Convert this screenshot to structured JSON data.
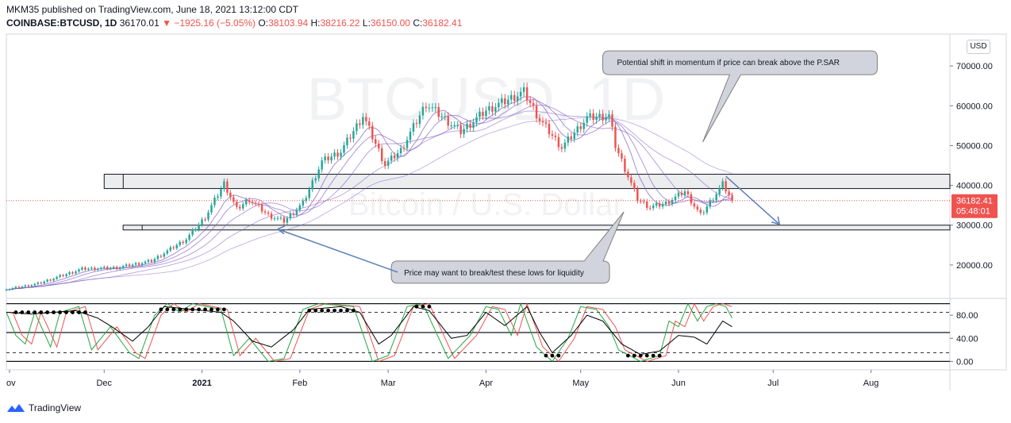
{
  "header": {
    "line1": "MKM35 published on TradingView.com, June 18, 2021 13:12:00 CDT",
    "symbol": "COINBASE:BTCUSD, 1D",
    "last": "36170.01",
    "change": "−1925.16 (−5.05%)",
    "o_label": "O:",
    "o_value": "38103.94",
    "h_label": "H:",
    "h_value": "38216.22",
    "l_label": "L:",
    "l_value": "36150.00",
    "c_label": "C:",
    "c_value": "36182.41"
  },
  "currency_label": "USD",
  "footer": {
    "brand": "TradingView"
  },
  "chart_data": [
    {
      "type": "candlestick",
      "series_name": "COINBASE:BTCUSD",
      "watermark_title": "BTCUSD, 1D",
      "watermark_subtitle": "Bitcoin / U.S. Dollar",
      "y_ticks": [
        "70000.00",
        "60000.00",
        "50000.00",
        "40000.00",
        "30000.00",
        "20000.00"
      ],
      "y_tick_values": [
        70000,
        60000,
        50000,
        40000,
        30000,
        20000
      ],
      "ylim": [
        12000,
        77000
      ],
      "x_tick_labels": [
        "ov",
        "Dec",
        "2021",
        "Feb",
        "Mar",
        "Apr",
        "May",
        "Jun",
        "Jul",
        "Aug"
      ],
      "x_tick_dates": [
        "2020-11-01",
        "2020-12-01",
        "2021-01-01",
        "2021-02-01",
        "2021-03-01",
        "2021-04-01",
        "2021-05-01",
        "2021-06-01",
        "2021-07-01",
        "2021-08-01"
      ],
      "xlim": [
        "2020-10-31",
        "2021-08-26"
      ],
      "price_anchor_points": [
        {
          "date": "2020-10-31",
          "close": 13800
        },
        {
          "date": "2020-11-10",
          "close": 15300
        },
        {
          "date": "2020-11-24",
          "close": 19000
        },
        {
          "date": "2020-12-05",
          "close": 19300
        },
        {
          "date": "2020-12-16",
          "close": 21000
        },
        {
          "date": "2020-12-27",
          "close": 26500
        },
        {
          "date": "2021-01-02",
          "close": 32000
        },
        {
          "date": "2021-01-08",
          "close": 40500
        },
        {
          "date": "2021-01-12",
          "close": 34000
        },
        {
          "date": "2021-01-16",
          "close": 36500
        },
        {
          "date": "2021-01-22",
          "close": 32500
        },
        {
          "date": "2021-01-27",
          "close": 31000
        },
        {
          "date": "2021-02-02",
          "close": 35500
        },
        {
          "date": "2021-02-08",
          "close": 46000
        },
        {
          "date": "2021-02-14",
          "close": 48500
        },
        {
          "date": "2021-02-21",
          "close": 57500
        },
        {
          "date": "2021-02-28",
          "close": 45200
        },
        {
          "date": "2021-03-05",
          "close": 48800
        },
        {
          "date": "2021-03-13",
          "close": 60500
        },
        {
          "date": "2021-03-24",
          "close": 53500
        },
        {
          "date": "2021-04-01",
          "close": 58800
        },
        {
          "date": "2021-04-13",
          "close": 63500
        },
        {
          "date": "2021-04-18",
          "close": 56500
        },
        {
          "date": "2021-04-25",
          "close": 49500
        },
        {
          "date": "2021-05-03",
          "close": 57000
        },
        {
          "date": "2021-05-10",
          "close": 57500
        },
        {
          "date": "2021-05-12",
          "close": 50000
        },
        {
          "date": "2021-05-19",
          "close": 36500
        },
        {
          "date": "2021-05-23",
          "close": 34500
        },
        {
          "date": "2021-05-28",
          "close": 35500
        },
        {
          "date": "2021-06-03",
          "close": 38500
        },
        {
          "date": "2021-06-08",
          "close": 32500
        },
        {
          "date": "2021-06-13",
          "close": 38000
        },
        {
          "date": "2021-06-15",
          "close": 40300
        },
        {
          "date": "2021-06-18",
          "close": 36182
        }
      ],
      "last_close_badge": "36182.41",
      "countdown_badge": "05:48:01",
      "zones": [
        {
          "name": "upper-zone",
          "from_date": "2020-12-01",
          "to_date": "2021-08-26",
          "y_low": 39200,
          "y_high": 42800
        },
        {
          "name": "lower-zone",
          "from_date": "2020-12-07",
          "to_date": "2021-08-26",
          "y_low": 28800,
          "y_high": 30000
        }
      ],
      "annotations": [
        {
          "text": "Potential shift in momentum if price can break above the P.SAR"
        },
        {
          "text": "Price may want to break/test these lows for liquidity"
        }
      ],
      "colors": {
        "up": "#26a69a",
        "down": "#ef5350",
        "ma": "#7e57c2",
        "arrow": "#5b7fb8",
        "callout_fill": "#d1d4dc",
        "callout_border": "#808080"
      }
    },
    {
      "type": "line",
      "series_name": "Stochastic RSI",
      "y_ticks": [
        "80.00",
        "40.00",
        "0.00"
      ],
      "y_tick_values": [
        80,
        40,
        0
      ],
      "ylim": [
        -5,
        105
      ],
      "levels": [
        100,
        85,
        50,
        15,
        0
      ],
      "k_anchor_points": [
        {
          "date": "2020-10-31",
          "k": 85
        },
        {
          "date": "2020-11-03",
          "k": 45
        },
        {
          "date": "2020-11-06",
          "k": 30
        },
        {
          "date": "2020-11-09",
          "k": 85
        },
        {
          "date": "2020-11-14",
          "k": 25
        },
        {
          "date": "2020-11-17",
          "k": 85
        },
        {
          "date": "2020-11-23",
          "k": 95
        },
        {
          "date": "2020-11-27",
          "k": 20
        },
        {
          "date": "2020-12-03",
          "k": 60
        },
        {
          "date": "2020-12-09",
          "k": 15
        },
        {
          "date": "2020-12-12",
          "k": 5
        },
        {
          "date": "2020-12-17",
          "k": 80
        },
        {
          "date": "2020-12-21",
          "k": 100
        },
        {
          "date": "2020-12-25",
          "k": 85
        },
        {
          "date": "2020-12-29",
          "k": 100
        },
        {
          "date": "2021-01-07",
          "k": 90
        },
        {
          "date": "2021-01-11",
          "k": 10
        },
        {
          "date": "2021-01-16",
          "k": 40
        },
        {
          "date": "2021-01-22",
          "k": 0
        },
        {
          "date": "2021-01-27",
          "k": 5
        },
        {
          "date": "2021-02-02",
          "k": 90
        },
        {
          "date": "2021-02-07",
          "k": 100
        },
        {
          "date": "2021-02-18",
          "k": 95
        },
        {
          "date": "2021-02-24",
          "k": 0
        },
        {
          "date": "2021-03-01",
          "k": 10
        },
        {
          "date": "2021-03-07",
          "k": 95
        },
        {
          "date": "2021-03-12",
          "k": 100
        },
        {
          "date": "2021-03-20",
          "k": 5
        },
        {
          "date": "2021-03-27",
          "k": 45
        },
        {
          "date": "2021-04-01",
          "k": 95
        },
        {
          "date": "2021-04-05",
          "k": 90
        },
        {
          "date": "2021-04-09",
          "k": 45
        },
        {
          "date": "2021-04-12",
          "k": 100
        },
        {
          "date": "2021-04-17",
          "k": 25
        },
        {
          "date": "2021-04-22",
          "k": 0
        },
        {
          "date": "2021-04-27",
          "k": 40
        },
        {
          "date": "2021-05-01",
          "k": 95
        },
        {
          "date": "2021-05-06",
          "k": 90
        },
        {
          "date": "2021-05-10",
          "k": 60
        },
        {
          "date": "2021-05-13",
          "k": 20
        },
        {
          "date": "2021-05-20",
          "k": 0
        },
        {
          "date": "2021-05-26",
          "k": 10
        },
        {
          "date": "2021-05-29",
          "k": 70
        },
        {
          "date": "2021-06-01",
          "k": 60
        },
        {
          "date": "2021-06-04",
          "k": 100
        },
        {
          "date": "2021-06-07",
          "k": 70
        },
        {
          "date": "2021-06-10",
          "k": 95
        },
        {
          "date": "2021-06-13",
          "k": 100
        },
        {
          "date": "2021-06-16",
          "k": 95
        },
        {
          "date": "2021-06-18",
          "k": 75
        }
      ],
      "d_lag_days": 2,
      "black_line_anchor_points": [
        {
          "date": "2020-10-31",
          "v": 85
        },
        {
          "date": "2020-11-08",
          "v": 82
        },
        {
          "date": "2020-11-22",
          "v": 88
        },
        {
          "date": "2020-11-29",
          "v": 75
        },
        {
          "date": "2020-12-04",
          "v": 58
        },
        {
          "date": "2020-12-10",
          "v": 35
        },
        {
          "date": "2020-12-15",
          "v": 60
        },
        {
          "date": "2020-12-20",
          "v": 95
        },
        {
          "date": "2021-01-07",
          "v": 85
        },
        {
          "date": "2021-01-11",
          "v": 70
        },
        {
          "date": "2021-01-17",
          "v": 35
        },
        {
          "date": "2021-01-23",
          "v": 25
        },
        {
          "date": "2021-01-30",
          "v": 55
        },
        {
          "date": "2021-02-04",
          "v": 90
        },
        {
          "date": "2021-02-14",
          "v": 95
        },
        {
          "date": "2021-02-20",
          "v": 85
        },
        {
          "date": "2021-02-26",
          "v": 30
        },
        {
          "date": "2021-03-02",
          "v": 45
        },
        {
          "date": "2021-03-09",
          "v": 95
        },
        {
          "date": "2021-03-14",
          "v": 88
        },
        {
          "date": "2021-03-21",
          "v": 40
        },
        {
          "date": "2021-03-26",
          "v": 45
        },
        {
          "date": "2021-04-01",
          "v": 85
        },
        {
          "date": "2021-04-07",
          "v": 62
        },
        {
          "date": "2021-04-14",
          "v": 95
        },
        {
          "date": "2021-04-18",
          "v": 50
        },
        {
          "date": "2021-04-22",
          "v": 15
        },
        {
          "date": "2021-04-28",
          "v": 45
        },
        {
          "date": "2021-05-03",
          "v": 80
        },
        {
          "date": "2021-05-08",
          "v": 70
        },
        {
          "date": "2021-05-14",
          "v": 30
        },
        {
          "date": "2021-05-20",
          "v": 12
        },
        {
          "date": "2021-05-26",
          "v": 18
        },
        {
          "date": "2021-06-01",
          "v": 45
        },
        {
          "date": "2021-06-06",
          "v": 42
        },
        {
          "date": "2021-06-10",
          "v": 30
        },
        {
          "date": "2021-06-15",
          "v": 70
        },
        {
          "date": "2021-06-18",
          "v": 60
        }
      ],
      "dot_ranges": [
        {
          "from": "2020-11-03",
          "to": "2020-11-25",
          "v": 85
        },
        {
          "from": "2020-12-19",
          "to": "2021-01-09",
          "v": 90
        },
        {
          "from": "2021-02-04",
          "to": "2021-02-19",
          "v": 88
        },
        {
          "from": "2021-03-10",
          "to": "2021-03-14",
          "v": 95
        },
        {
          "from": "2021-04-20",
          "to": "2021-04-25",
          "v": 10
        },
        {
          "from": "2021-05-16",
          "to": "2021-05-26",
          "v": 10
        }
      ],
      "colors": {
        "k": "#26a641",
        "d": "#ef5350",
        "line": "#000000"
      }
    }
  ]
}
